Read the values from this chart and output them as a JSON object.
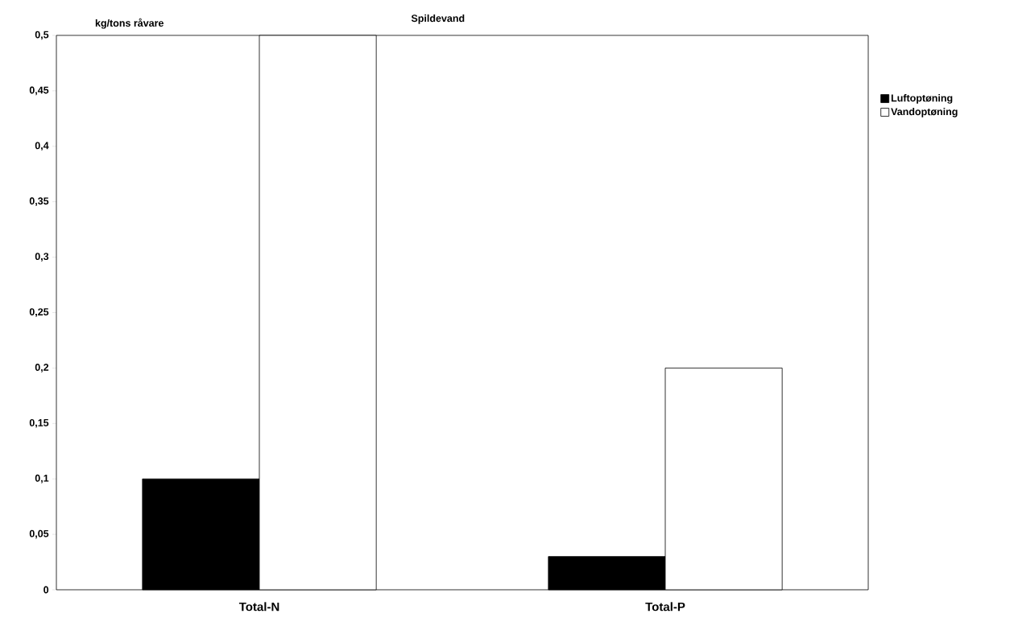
{
  "chart_data": {
    "type": "bar",
    "title": "Spildevand",
    "ylabel": "kg/tons råvare",
    "categories": [
      "Total-N",
      "Total-P"
    ],
    "series": [
      {
        "name": "Luftoptøning",
        "color": "#000000",
        "values": [
          0.1,
          0.03
        ]
      },
      {
        "name": "Vandoptøning",
        "color": "#ffffff",
        "values": [
          0.5,
          0.2
        ]
      }
    ],
    "ylim": [
      0,
      0.5
    ],
    "yticks": [
      0,
      {
        "value": 0.05,
        "label": "0,05"
      },
      {
        "value": 0.1,
        "label": "0,1"
      },
      {
        "value": 0.15,
        "label": "0,15"
      },
      {
        "value": 0.2,
        "label": "0,2"
      },
      {
        "value": 0.25,
        "label": "0,25"
      },
      {
        "value": 0.3,
        "label": "0,3"
      },
      {
        "value": 0.35,
        "label": "0,35"
      },
      {
        "value": 0.4,
        "label": "0,4"
      },
      {
        "value": 0.45,
        "label": "0,45"
      },
      {
        "value": 0.5,
        "label": "0,5"
      }
    ],
    "grid": false,
    "legend": "right"
  }
}
